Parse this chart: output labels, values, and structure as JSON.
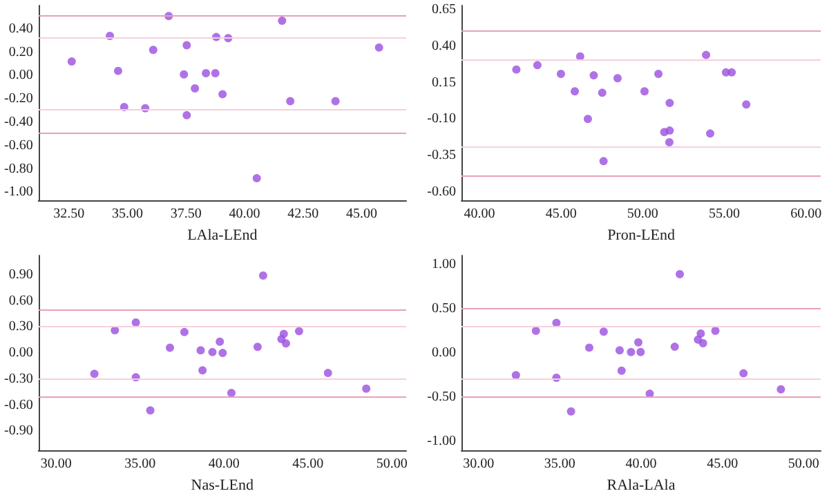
{
  "chart_data": [
    {
      "type": "scatter",
      "xlabel": "LAla-LEnd",
      "marker": "circle",
      "grid": false,
      "xlim": [
        31.2,
        46.9
      ],
      "ylim": [
        -1.07,
        0.6
      ],
      "xticks": [
        {
          "value": 32.5,
          "label": "32.50"
        },
        {
          "value": 35,
          "label": "35.00"
        },
        {
          "value": 37.5,
          "label": "37.50"
        },
        {
          "value": 40,
          "label": "40.00"
        },
        {
          "value": 42.5,
          "label": "42.50"
        },
        {
          "value": 45,
          "label": "45.00"
        }
      ],
      "yticks": [
        {
          "value": 0.4,
          "label": "0.40"
        },
        {
          "value": 0.2,
          "label": "0.20"
        },
        {
          "value": 0,
          "label": "0.00"
        },
        {
          "value": -0.2,
          "label": "-0.20"
        },
        {
          "value": -0.4,
          "label": "-0.40"
        },
        {
          "value": -0.6,
          "label": "-0.60"
        },
        {
          "value": -0.8,
          "label": "-0.80"
        },
        {
          "value": -1,
          "label": "-1.00"
        }
      ],
      "series": [
        {
          "color": "#9b4fe0",
          "x": [
            32.62,
            34.25,
            34.6,
            34.86,
            35.76,
            36.1,
            36.76,
            37.41,
            37.53,
            37.53,
            37.88,
            38.35,
            38.75,
            38.79,
            39.06,
            39.3,
            40.52,
            41.6,
            41.95,
            43.88,
            45.74
          ],
          "values": [
            0.12,
            0.34,
            0.04,
            -0.27,
            -0.28,
            0.22,
            0.51,
            0.01,
            0.26,
            -0.34,
            -0.11,
            0.02,
            0.02,
            0.33,
            -0.16,
            0.32,
            -0.88,
            0.47,
            -0.22,
            -0.22,
            0.24
          ]
        }
      ],
      "ref_lines": [
        {
          "axis": "y",
          "value": 0.52,
          "color": "#e8a0b8"
        },
        {
          "axis": "y",
          "value": 0.32,
          "color": "#f5d0dc"
        },
        {
          "axis": "y",
          "value": -0.29,
          "color": "#f5d0dc"
        },
        {
          "axis": "y",
          "value": -0.49,
          "color": "#e8a0b8"
        }
      ]
    },
    {
      "type": "scatter",
      "xlabel": "Pron-LEnd",
      "marker": "circle",
      "grid": false,
      "xlim": [
        38.9,
        60.9
      ],
      "ylim": [
        -0.66,
        0.68
      ],
      "xticks": [
        {
          "value": 40,
          "label": "40.00"
        },
        {
          "value": 45,
          "label": "45.00"
        },
        {
          "value": 50,
          "label": "50.00"
        },
        {
          "value": 55,
          "label": "55.00"
        },
        {
          "value": 60,
          "label": "60.00"
        }
      ],
      "yticks": [
        {
          "value": 0.65,
          "label": "0.65"
        },
        {
          "value": 0.4,
          "label": "0.40"
        },
        {
          "value": 0.15,
          "label": "0.15"
        },
        {
          "value": -0.1,
          "label": "-0.10"
        },
        {
          "value": -0.35,
          "label": "-0.35"
        },
        {
          "value": -0.6,
          "label": "-0.60"
        }
      ],
      "series": [
        {
          "color": "#9b4fe0",
          "x": [
            42.26,
            43.55,
            44.99,
            46.17,
            45.84,
            47.0,
            46.64,
            47.52,
            47.6,
            48.46,
            50.11,
            50.96,
            51.65,
            51.32,
            51.65,
            51.63,
            53.88,
            54.13,
            55.1,
            55.45,
            56.34
          ],
          "values": [
            0.24,
            0.27,
            0.21,
            0.33,
            0.09,
            0.2,
            -0.1,
            0.08,
            -0.39,
            0.18,
            0.09,
            0.21,
            0.01,
            -0.19,
            -0.18,
            -0.26,
            0.34,
            -0.2,
            0.22,
            0.22,
            0.0
          ]
        }
      ],
      "ref_lines": [
        {
          "axis": "y",
          "value": 0.51,
          "color": "#e8a0b8"
        },
        {
          "axis": "y",
          "value": 0.31,
          "color": "#f5d0dc"
        },
        {
          "axis": "y",
          "value": -0.29,
          "color": "#f5d0dc"
        },
        {
          "axis": "y",
          "value": -0.49,
          "color": "#e8a0b8"
        }
      ]
    },
    {
      "type": "scatter",
      "xlabel": "Nas-LEnd",
      "marker": "circle",
      "grid": false,
      "xlim": [
        28.95,
        50.85
      ],
      "ylim": [
        -1.12,
        1.12
      ],
      "xticks": [
        {
          "value": 30,
          "label": "30.00"
        },
        {
          "value": 35,
          "label": "35.00"
        },
        {
          "value": 40,
          "label": "40.00"
        },
        {
          "value": 45,
          "label": "45.00"
        },
        {
          "value": 50,
          "label": "50.00"
        }
      ],
      "yticks": [
        {
          "value": 0.9,
          "label": "0.90"
        },
        {
          "value": 0.6,
          "label": "0.60"
        },
        {
          "value": 0.3,
          "label": "0.30"
        },
        {
          "value": 0,
          "label": "0.00"
        },
        {
          "value": -0.3,
          "label": "-0.30"
        },
        {
          "value": -0.6,
          "label": "-0.60"
        },
        {
          "value": -0.9,
          "label": "-0.90"
        }
      ],
      "series": [
        {
          "color": "#9b4fe0",
          "x": [
            32.28,
            33.5,
            34.75,
            34.75,
            35.61,
            36.78,
            37.64,
            38.61,
            38.72,
            39.31,
            39.75,
            39.92,
            40.44,
            42.0,
            42.33,
            43.42,
            43.56,
            43.69,
            44.47,
            46.19,
            48.47
          ],
          "values": [
            -0.24,
            0.26,
            0.35,
            -0.28,
            -0.66,
            0.06,
            0.24,
            0.03,
            -0.2,
            0.01,
            0.13,
            0.0,
            -0.46,
            0.07,
            0.89,
            0.16,
            0.22,
            0.11,
            0.25,
            -0.23,
            -0.41
          ]
        }
      ],
      "ref_lines": [
        {
          "axis": "y",
          "value": 0.5,
          "color": "#e8a0b8"
        },
        {
          "axis": "y",
          "value": 0.3,
          "color": "#f5d0dc"
        },
        {
          "axis": "y",
          "value": -0.3,
          "color": "#f5d0dc"
        },
        {
          "axis": "y",
          "value": -0.5,
          "color": "#e8a0b8"
        }
      ]
    },
    {
      "type": "scatter",
      "xlabel": "RAla-LAla",
      "marker": "circle",
      "grid": false,
      "xlim": [
        28.95,
        51.05
      ],
      "ylim": [
        -1.1,
        1.1
      ],
      "xticks": [
        {
          "value": 30,
          "label": "30.00"
        },
        {
          "value": 35,
          "label": "35.00"
        },
        {
          "value": 40,
          "label": "40.00"
        },
        {
          "value": 45,
          "label": "45.00"
        },
        {
          "value": 50,
          "label": "50.00"
        }
      ],
      "yticks": [
        {
          "value": 1,
          "label": "1.00"
        },
        {
          "value": 0.5,
          "label": "0.50"
        },
        {
          "value": 0,
          "label": "0.00"
        },
        {
          "value": -0.5,
          "label": "-0.50"
        },
        {
          "value": -1,
          "label": "-1.00"
        }
      ],
      "series": [
        {
          "color": "#9b4fe0",
          "x": [
            32.3,
            33.53,
            34.79,
            34.79,
            35.69,
            36.81,
            37.7,
            38.68,
            38.8,
            39.38,
            39.83,
            39.97,
            40.53,
            42.07,
            42.38,
            43.5,
            43.67,
            43.81,
            44.57,
            46.3,
            48.6
          ],
          "values": [
            -0.25,
            0.25,
            0.34,
            -0.28,
            -0.66,
            0.06,
            0.24,
            0.03,
            -0.2,
            0.01,
            0.12,
            0.01,
            -0.46,
            0.07,
            0.89,
            0.15,
            0.22,
            0.11,
            0.25,
            -0.23,
            -0.41
          ]
        }
      ],
      "ref_lines": [
        {
          "axis": "y",
          "value": 0.51,
          "color": "#e8a0b8"
        },
        {
          "axis": "y",
          "value": 0.3,
          "color": "#f5d0dc"
        },
        {
          "axis": "y",
          "value": -0.29,
          "color": "#f5d0dc"
        },
        {
          "axis": "y",
          "value": -0.5,
          "color": "#e8a0b8"
        }
      ]
    }
  ]
}
